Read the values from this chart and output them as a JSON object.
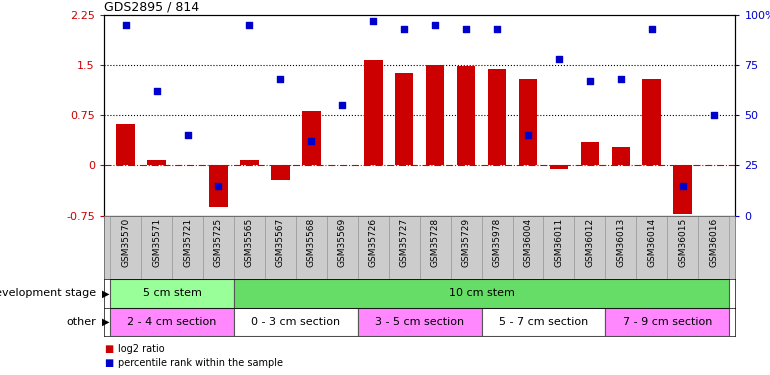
{
  "title": "GDS2895 / 814",
  "samples": [
    "GSM35570",
    "GSM35571",
    "GSM35721",
    "GSM35725",
    "GSM35565",
    "GSM35567",
    "GSM35568",
    "GSM35569",
    "GSM35726",
    "GSM35727",
    "GSM35728",
    "GSM35729",
    "GSM35978",
    "GSM36004",
    "GSM36011",
    "GSM36012",
    "GSM36013",
    "GSM36014",
    "GSM36015",
    "GSM36016"
  ],
  "log2_ratio": [
    0.62,
    0.08,
    0.0,
    -0.62,
    0.08,
    -0.22,
    0.82,
    0.0,
    1.57,
    1.38,
    1.5,
    1.48,
    1.45,
    1.3,
    -0.05,
    0.35,
    0.28,
    1.3,
    -0.72,
    0.0
  ],
  "percentile": [
    95,
    62,
    40,
    15,
    95,
    68,
    37,
    55,
    97,
    93,
    95,
    93,
    93,
    40,
    78,
    67,
    68,
    93,
    15,
    50
  ],
  "bar_color": "#cc0000",
  "dot_color": "#0000cc",
  "ylim_left": [
    -0.75,
    2.25
  ],
  "ylim_right": [
    0,
    100
  ],
  "yticks_left": [
    -0.75,
    0.0,
    0.75,
    1.5,
    2.25
  ],
  "ytick_labels_left": [
    "-0.75",
    "0",
    "0.75",
    "1.5",
    "2.25"
  ],
  "yticks_right": [
    0,
    25,
    50,
    75,
    100
  ],
  "ytick_labels_right": [
    "0",
    "25",
    "50",
    "75",
    "100%"
  ],
  "hlines": [
    0.75,
    1.5
  ],
  "zero_line": 0.0,
  "development_stage_groups": [
    {
      "label": "5 cm stem",
      "start": 0,
      "end": 3,
      "color": "#99ff99"
    },
    {
      "label": "10 cm stem",
      "start": 4,
      "end": 19,
      "color": "#66dd66"
    }
  ],
  "other_groups": [
    {
      "label": "2 - 4 cm section",
      "start": 0,
      "end": 3,
      "color": "#ff88ff"
    },
    {
      "label": "0 - 3 cm section",
      "start": 4,
      "end": 7,
      "color": "#ffffff"
    },
    {
      "label": "3 - 5 cm section",
      "start": 8,
      "end": 11,
      "color": "#ff88ff"
    },
    {
      "label": "5 - 7 cm section",
      "start": 12,
      "end": 15,
      "color": "#ffffff"
    },
    {
      "label": "7 - 9 cm section",
      "start": 16,
      "end": 19,
      "color": "#ff88ff"
    }
  ],
  "dev_stage_label": "development stage",
  "other_label": "other",
  "legend_items": [
    {
      "color": "#cc0000",
      "label": "log2 ratio"
    },
    {
      "color": "#0000cc",
      "label": "percentile rank within the sample"
    }
  ]
}
